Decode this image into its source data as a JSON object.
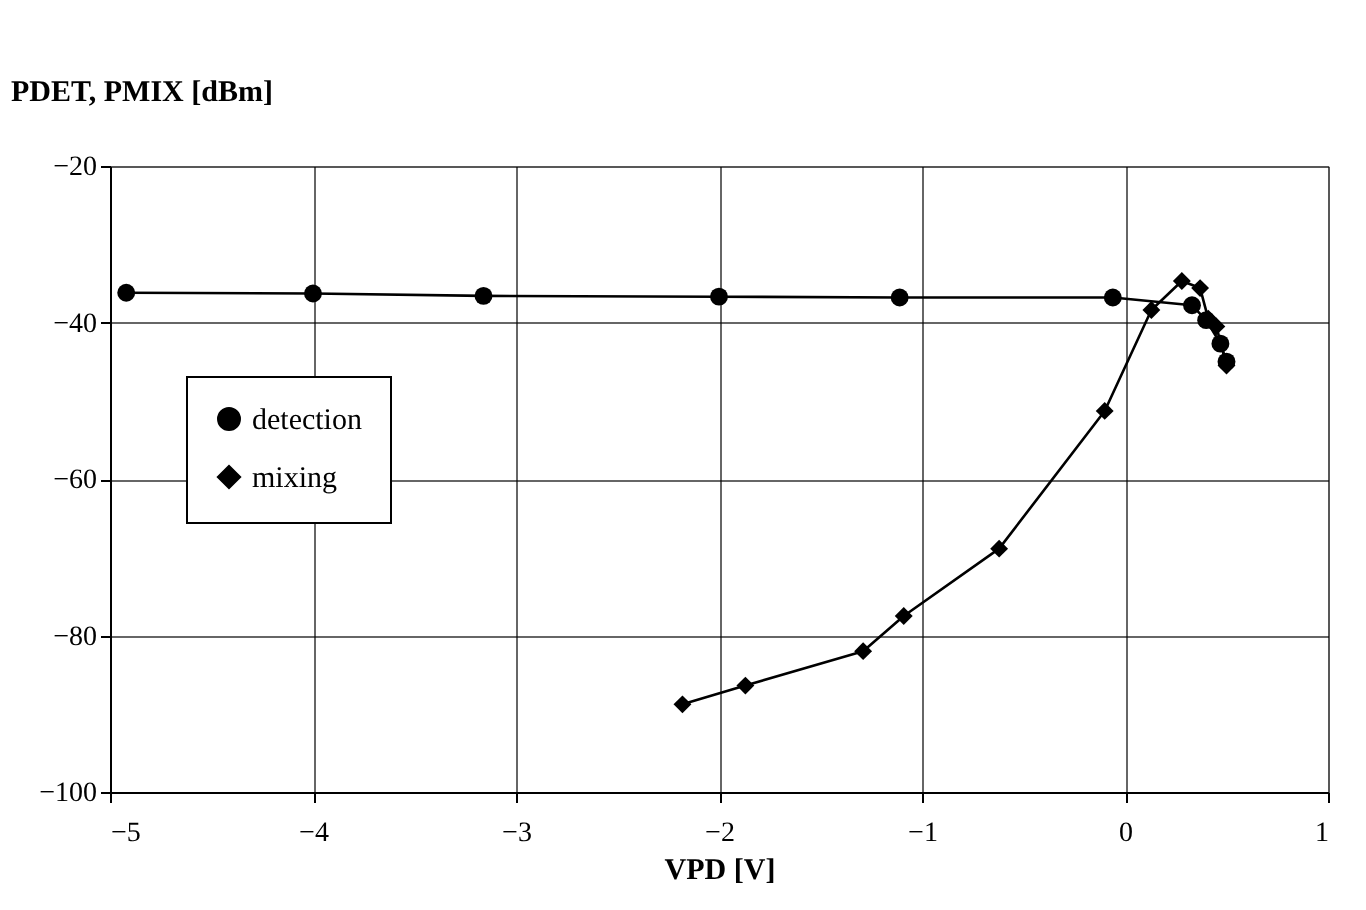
{
  "chart_data": {
    "type": "line",
    "xlabel": "VPD [V]",
    "ylabel": "PDET, PMIX [dBm]",
    "xlim": [
      -5,
      1
    ],
    "xticks": [
      -5,
      -4,
      -3,
      -2,
      -1,
      0,
      1
    ],
    "ylim": [
      -100,
      -20
    ],
    "yticks": [
      -100,
      -80,
      -60,
      -40,
      -20
    ],
    "grid": true,
    "legend": "left",
    "line_style": "solid",
    "series": [
      {
        "name": "detection",
        "color": "#000000",
        "marker": "circle",
        "x": [
          -4.92,
          -4.0,
          -3.16,
          -2.0,
          -1.11,
          -0.06,
          0.33,
          0.4,
          0.47,
          0.5
        ],
        "values": [
          -36.2,
          -36.3,
          -36.6,
          -36.7,
          -36.8,
          -36.8,
          -37.8,
          -39.7,
          -42.7,
          -45
        ]
      },
      {
        "name": "mixing",
        "color": "#000000",
        "marker": "diamond",
        "x": [
          -2.18,
          -1.87,
          -1.29,
          -1.09,
          -0.62,
          -0.1,
          0.13,
          0.28,
          0.37,
          0.41,
          0.45,
          0.5
        ],
        "values": [
          -88.8,
          -86.4,
          -82.0,
          -77.5,
          -68.9,
          -51.3,
          -38.4,
          -34.7,
          -35.6,
          -39.5,
          -40.5,
          -45.5
        ]
      }
    ]
  }
}
